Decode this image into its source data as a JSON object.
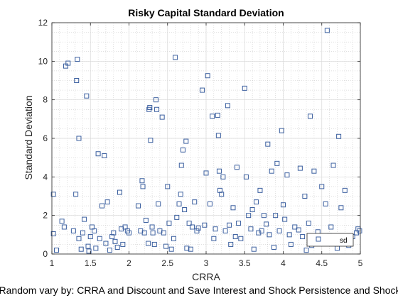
{
  "caption": "Random vary by: CRRA and Discount and Save Interest and Shock Persistence and Shock",
  "colors": {
    "marker": "#3b5f9f",
    "axis": "#262626",
    "grid": "#b4b4b4"
  },
  "chart_data": {
    "type": "scatter",
    "title": "Risky Capital Standard Deviation",
    "xlabel": "CRRA",
    "ylabel": "Standard Deviation",
    "xlim": [
      1,
      5
    ],
    "ylim": [
      0,
      12
    ],
    "xticks": [
      1,
      1.5,
      2,
      2.5,
      3,
      3.5,
      4,
      4.5,
      5
    ],
    "xtick_labels": [
      "1",
      "1.5",
      "2",
      "2.5",
      "3",
      "3.5",
      "4",
      "4.5",
      "5"
    ],
    "yticks": [
      0,
      2,
      4,
      6,
      8,
      10,
      12
    ],
    "ytick_labels": [
      "0",
      "2",
      "4",
      "6",
      "8",
      "10",
      "12"
    ],
    "grid": true,
    "minor_grid": true,
    "legend": {
      "entries": [
        "sd"
      ],
      "placement": "bottom-right"
    },
    "series": [
      {
        "name": "sd",
        "marker": "square",
        "points": [
          [
            1.02,
            3.1
          ],
          [
            1.02,
            1.05
          ],
          [
            1.06,
            0.2
          ],
          [
            1.13,
            1.7
          ],
          [
            1.16,
            1.4
          ],
          [
            1.18,
            9.75
          ],
          [
            1.21,
            9.9
          ],
          [
            1.28,
            1.2
          ],
          [
            1.31,
            3.1
          ],
          [
            1.32,
            9.0
          ],
          [
            1.33,
            10.1
          ],
          [
            1.35,
            6.0
          ],
          [
            1.35,
            0.8
          ],
          [
            1.38,
            0.25
          ],
          [
            1.4,
            1.1
          ],
          [
            1.42,
            1.8
          ],
          [
            1.45,
            8.2
          ],
          [
            1.47,
            0.4
          ],
          [
            1.48,
            0.15
          ],
          [
            1.5,
            0.9
          ],
          [
            1.52,
            1.4
          ],
          [
            1.55,
            1.2
          ],
          [
            1.57,
            0.3
          ],
          [
            1.6,
            5.2
          ],
          [
            1.62,
            0.8
          ],
          [
            1.65,
            2.5
          ],
          [
            1.68,
            5.1
          ],
          [
            1.7,
            0.55
          ],
          [
            1.72,
            2.7
          ],
          [
            1.75,
            0.2
          ],
          [
            1.78,
            0.9
          ],
          [
            1.8,
            1.1
          ],
          [
            1.82,
            0.65
          ],
          [
            1.85,
            0.35
          ],
          [
            1.88,
            3.2
          ],
          [
            1.9,
            1.3
          ],
          [
            1.92,
            0.5
          ],
          [
            1.95,
            1.4
          ],
          [
            1.98,
            1.2
          ],
          [
            2.0,
            1.1
          ],
          [
            2.12,
            2.5
          ],
          [
            2.15,
            1.2
          ],
          [
            2.17,
            3.8
          ],
          [
            2.18,
            3.5
          ],
          [
            2.2,
            1.1
          ],
          [
            2.22,
            1.75
          ],
          [
            2.25,
            0.55
          ],
          [
            2.26,
            7.5
          ],
          [
            2.27,
            7.6
          ],
          [
            2.28,
            5.9
          ],
          [
            2.3,
            1.4
          ],
          [
            2.31,
            1.1
          ],
          [
            2.33,
            0.5
          ],
          [
            2.35,
            8.0
          ],
          [
            2.36,
            7.5
          ],
          [
            2.38,
            2.6
          ],
          [
            2.4,
            1.2
          ],
          [
            2.43,
            7.1
          ],
          [
            2.45,
            1.1
          ],
          [
            2.48,
            0.4
          ],
          [
            2.5,
            3.5
          ],
          [
            2.52,
            1.6
          ],
          [
            2.55,
            0.25
          ],
          [
            2.58,
            0.8
          ],
          [
            2.6,
            10.2
          ],
          [
            2.62,
            1.9
          ],
          [
            2.65,
            2.6
          ],
          [
            2.67,
            3.1
          ],
          [
            2.68,
            4.6
          ],
          [
            2.7,
            5.4
          ],
          [
            2.72,
            2.3
          ],
          [
            2.74,
            5.85
          ],
          [
            2.75,
            0.3
          ],
          [
            2.78,
            1.6
          ],
          [
            2.8,
            0.25
          ],
          [
            2.82,
            1.4
          ],
          [
            2.85,
            2.7
          ],
          [
            2.88,
            1.2
          ],
          [
            2.9,
            1.35
          ],
          [
            2.95,
            8.5
          ],
          [
            2.98,
            1.5
          ],
          [
            3.0,
            4.2
          ],
          [
            3.02,
            9.25
          ],
          [
            3.05,
            2.6
          ],
          [
            3.08,
            7.15
          ],
          [
            3.1,
            0.8
          ],
          [
            3.12,
            1.3
          ],
          [
            3.15,
            7.2
          ],
          [
            3.16,
            6.15
          ],
          [
            3.17,
            4.3
          ],
          [
            3.18,
            3.3
          ],
          [
            3.2,
            3.1
          ],
          [
            3.22,
            4.0
          ],
          [
            3.25,
            1.2
          ],
          [
            3.28,
            7.7
          ],
          [
            3.3,
            1.5
          ],
          [
            3.32,
            0.5
          ],
          [
            3.35,
            2.4
          ],
          [
            3.38,
            0.9
          ],
          [
            3.4,
            4.5
          ],
          [
            3.42,
            1.6
          ],
          [
            3.45,
            0.8
          ],
          [
            3.5,
            8.6
          ],
          [
            3.52,
            4.0
          ],
          [
            3.55,
            2.0
          ],
          [
            3.58,
            1.3
          ],
          [
            3.6,
            2.3
          ],
          [
            3.62,
            0.25
          ],
          [
            3.65,
            2.7
          ],
          [
            3.68,
            1.1
          ],
          [
            3.7,
            3.3
          ],
          [
            3.72,
            1.2
          ],
          [
            3.75,
            2.0
          ],
          [
            3.78,
            1.55
          ],
          [
            3.8,
            5.7
          ],
          [
            3.82,
            1.0
          ],
          [
            3.85,
            4.3
          ],
          [
            3.88,
            0.35
          ],
          [
            3.9,
            2.0
          ],
          [
            3.92,
            4.7
          ],
          [
            3.95,
            1.2
          ],
          [
            3.98,
            6.4
          ],
          [
            4.0,
            2.55
          ],
          [
            4.02,
            1.8
          ],
          [
            4.05,
            4.1
          ],
          [
            4.08,
            1.0
          ],
          [
            4.1,
            0.5
          ],
          [
            4.15,
            1.4
          ],
          [
            4.2,
            1.25
          ],
          [
            4.22,
            4.45
          ],
          [
            4.25,
            0.9
          ],
          [
            4.28,
            3.0
          ],
          [
            4.3,
            0.2
          ],
          [
            4.33,
            1.6
          ],
          [
            4.35,
            7.15
          ],
          [
            4.37,
            0.45
          ],
          [
            4.4,
            4.3
          ],
          [
            4.42,
            0.9
          ],
          [
            4.45,
            1.15
          ],
          [
            4.5,
            3.5
          ],
          [
            4.55,
            2.6
          ],
          [
            4.57,
            11.6
          ],
          [
            4.6,
            0.95
          ],
          [
            4.62,
            1.4
          ],
          [
            4.65,
            4.6
          ],
          [
            4.7,
            0.3
          ],
          [
            4.72,
            6.1
          ],
          [
            4.75,
            2.4
          ],
          [
            4.8,
            3.3
          ],
          [
            4.85,
            0.45
          ],
          [
            4.9,
            0.9
          ],
          [
            4.95,
            1.1
          ],
          [
            4.97,
            1.3
          ],
          [
            4.99,
            1.2
          ]
        ]
      }
    ]
  }
}
